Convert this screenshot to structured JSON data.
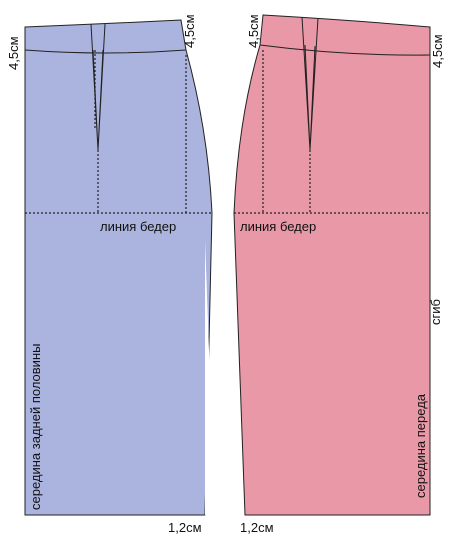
{
  "labels": {
    "back_waist_left": "4,5см",
    "back_waist_right": "4,5см",
    "front_waist_left": "4,5см",
    "front_waist_right": "4,5см",
    "back_hip_line": "линия бедер",
    "front_hip_line": "линия бедер",
    "back_center": "середина задней половины",
    "front_center": "середина переда",
    "fold": "сгиб",
    "back_hem": "1,2см",
    "front_hem": "1,2см"
  }
}
